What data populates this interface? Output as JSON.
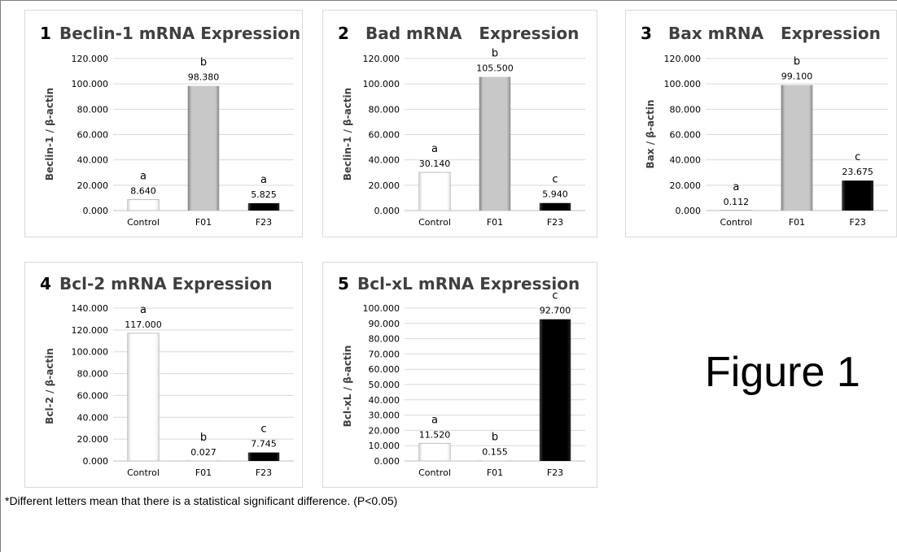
{
  "figure_label": "Figure 1",
  "footnote": "*Different letters mean that there is a statistical significant difference. (P<0.05)",
  "colors": {
    "control": "#ffffff",
    "f01": "#a6a6a6",
    "f23": "#0d0d0d",
    "grid": "#d9d9d9"
  },
  "chart_data": [
    {
      "type": "bar",
      "number": "1",
      "title": "Beclin-1 mRNA Expression",
      "ylabel": "Beclin-1 / β-actin",
      "categories": [
        "Control",
        "F01",
        "F23"
      ],
      "values": [
        8.64,
        98.38,
        5.825
      ],
      "value_labels": [
        "8.640",
        "98.380",
        "5.825"
      ],
      "letters": [
        "a",
        "b",
        "a"
      ],
      "ylim": [
        0,
        120
      ],
      "yticks": [
        "0.000",
        "20.000",
        "40.000",
        "60.000",
        "80.000",
        "100.000",
        "120.000"
      ]
    },
    {
      "type": "bar",
      "number": "2",
      "title": "Bad mRNA   Expression",
      "ylabel": "Beclin-1 / β-actin",
      "categories": [
        "Control",
        "F01",
        "F23"
      ],
      "values": [
        30.14,
        105.5,
        5.94
      ],
      "value_labels": [
        "30.140",
        "105.500",
        "5.940"
      ],
      "letters": [
        "a",
        "b",
        "c"
      ],
      "ylim": [
        0,
        120
      ],
      "yticks": [
        "0.000",
        "20.000",
        "40.000",
        "60.000",
        "80.000",
        "100.000",
        "120.000"
      ]
    },
    {
      "type": "bar",
      "number": "3",
      "title": "Bax mRNA   Expression",
      "ylabel": "Bax / β-actin",
      "categories": [
        "Control",
        "F01",
        "F23"
      ],
      "values": [
        0.112,
        99.1,
        23.675
      ],
      "value_labels": [
        "0.112",
        "99.100",
        "23.675"
      ],
      "letters": [
        "a",
        "b",
        "c"
      ],
      "ylim": [
        0,
        120
      ],
      "yticks": [
        "0.000",
        "20.000",
        "40.000",
        "60.000",
        "80.000",
        "100.000",
        "120.000"
      ]
    },
    {
      "type": "bar",
      "number": "4",
      "title": "Bcl-2 mRNA Expression",
      "ylabel": "Bcl-2 / β-actin",
      "categories": [
        "Control",
        "F01",
        "F23"
      ],
      "values": [
        117,
        0.027,
        7.745
      ],
      "value_labels": [
        "117.000",
        "0.027",
        "7.745"
      ],
      "letters": [
        "a",
        "b",
        "c"
      ],
      "ylim": [
        0,
        140
      ],
      "yticks": [
        "0.000",
        "20.000",
        "40.000",
        "60.000",
        "80.000",
        "100.000",
        "120.000",
        "140.000"
      ]
    },
    {
      "type": "bar",
      "number": "5",
      "title": "Bcl-xL mRNA Expression",
      "ylabel": "Bcl-xL / β-actin",
      "categories": [
        "Control",
        "F01",
        "F23"
      ],
      "values": [
        11.52,
        0.155,
        92.7
      ],
      "value_labels": [
        "11.520",
        "0.155",
        "92.700"
      ],
      "letters": [
        "a",
        "b",
        "c"
      ],
      "ylim": [
        0,
        100
      ],
      "yticks": [
        "0.000",
        "10.000",
        "20.000",
        "30.000",
        "40.000",
        "50.000",
        "60.000",
        "70.000",
        "80.000",
        "90.000",
        "100.000"
      ]
    }
  ]
}
